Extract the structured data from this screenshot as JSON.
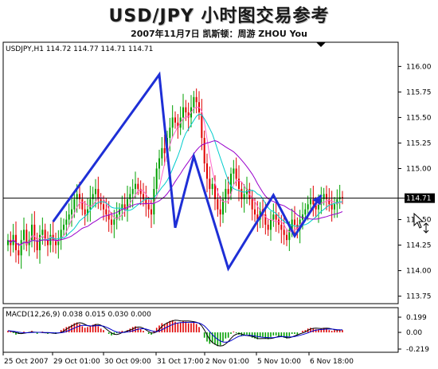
{
  "header": {
    "title": "USD/JPY 小时图交易参考",
    "subtitle": "2007年11月7日  凯斯顿：周游 ZHOU You"
  },
  "chart_data": [
    {
      "type": "candlestick",
      "symbol_header": "USDJPY,H1  114.72 114.77 114.71 114.71",
      "current_price_label": "114.71",
      "current_price": 114.71,
      "ylim": [
        113.7,
        116.12
      ],
      "y_ticks": [
        "116.00",
        "115.75",
        "115.50",
        "115.25",
        "115.00",
        "114.50",
        "114.25",
        "114.00",
        "113.75"
      ],
      "y_tick_values": [
        116.0,
        115.75,
        115.5,
        115.25,
        115.0,
        114.5,
        114.25,
        114.0,
        113.75
      ],
      "x_labels": [
        "25 Oct 2007",
        "29 Oct 01:00",
        "30 Oct 09:00",
        "31 Oct 17:00",
        "2 Nov 01:00",
        "5 Nov 10:00",
        "6 Nov 18:00"
      ],
      "close": [
        114.3,
        114.25,
        114.35,
        114.2,
        114.15,
        114.3,
        114.4,
        114.25,
        114.3,
        114.45,
        114.3,
        114.2,
        114.35,
        114.4,
        114.3,
        114.25,
        114.35,
        114.3,
        114.25,
        114.3,
        114.4,
        114.45,
        114.5,
        114.55,
        114.6,
        114.7,
        114.75,
        114.7,
        114.6,
        114.55,
        114.6,
        114.7,
        114.75,
        114.8,
        114.7,
        114.65,
        114.6,
        114.55,
        114.5,
        114.45,
        114.5,
        114.55,
        114.6,
        114.65,
        114.6,
        114.7,
        114.75,
        114.8,
        114.85,
        114.8,
        114.75,
        114.7,
        114.65,
        114.6,
        114.55,
        114.8,
        115.0,
        115.1,
        115.2,
        115.15,
        115.3,
        115.4,
        115.5,
        115.45,
        115.4,
        115.5,
        115.6,
        115.55,
        115.5,
        115.6,
        115.7,
        115.65,
        115.55,
        115.3,
        115.05,
        114.9,
        114.8,
        114.85,
        114.7,
        114.6,
        114.55,
        114.7,
        114.8,
        114.75,
        114.95,
        115.0,
        114.9,
        114.8,
        114.7,
        114.75,
        114.8,
        114.7,
        114.6,
        114.55,
        114.5,
        114.6,
        114.55,
        114.45,
        114.4,
        114.5,
        114.55,
        114.5,
        114.45,
        114.4,
        114.35,
        114.3,
        114.4,
        114.5,
        114.45,
        114.4,
        114.5,
        114.55,
        114.6,
        114.65,
        114.7,
        114.65,
        114.6,
        114.65,
        114.7,
        114.75,
        114.7,
        114.65,
        114.6,
        114.65,
        114.7,
        114.72,
        114.71
      ],
      "macd_label": "MACD(12,26,9) 0.038 0.015 0.030 0.000",
      "macd_ticks": [
        "0.199",
        "0.00",
        "-0.219"
      ],
      "macd_hist": [
        0.02,
        0.01,
        -0.01,
        -0.03,
        -0.02,
        0.0,
        0.01,
        -0.01,
        0.0,
        0.02,
        0.0,
        -0.02,
        0.0,
        0.01,
        -0.01,
        -0.02,
        0.0,
        -0.01,
        -0.02,
        0.0,
        0.03,
        0.05,
        0.07,
        0.08,
        0.1,
        0.12,
        0.13,
        0.11,
        0.08,
        0.06,
        0.07,
        0.09,
        0.1,
        0.11,
        0.08,
        0.05,
        0.03,
        0.0,
        -0.02,
        -0.04,
        -0.03,
        -0.01,
        0.01,
        0.02,
        0.01,
        0.03,
        0.05,
        0.07,
        0.08,
        0.06,
        0.04,
        0.02,
        0.0,
        -0.02,
        -0.03,
        0.02,
        0.06,
        0.09,
        0.12,
        0.11,
        0.13,
        0.15,
        0.16,
        0.14,
        0.12,
        0.13,
        0.15,
        0.14,
        0.12,
        0.12,
        0.13,
        0.11,
        0.07,
        0.0,
        -0.07,
        -0.12,
        -0.15,
        -0.14,
        -0.16,
        -0.18,
        -0.17,
        -0.12,
        -0.08,
        -0.07,
        -0.02,
        0.01,
        -0.01,
        -0.03,
        -0.05,
        -0.04,
        -0.03,
        -0.05,
        -0.07,
        -0.08,
        -0.09,
        -0.06,
        -0.06,
        -0.08,
        -0.09,
        -0.06,
        -0.04,
        -0.04,
        -0.05,
        -0.06,
        -0.07,
        -0.08,
        -0.05,
        -0.02,
        -0.02,
        -0.03,
        0.0,
        0.02,
        0.03,
        0.05,
        0.06,
        0.05,
        0.04,
        0.04,
        0.05,
        0.06,
        0.05,
        0.03,
        0.02,
        0.03,
        0.03,
        0.03,
        0.03
      ],
      "zigzag_projection": [
        {
          "i": 17,
          "price": 114.48
        },
        {
          "i": 57,
          "price": 115.92
        },
        {
          "i": 63,
          "price": 114.42
        },
        {
          "i": 70,
          "price": 115.12
        },
        {
          "i": 83,
          "price": 114.02
        },
        {
          "i": 100,
          "price": 114.74
        },
        {
          "i": 108,
          "price": 114.34
        },
        {
          "i": 118,
          "price": 114.74
        }
      ],
      "colors": {
        "bull": "#00a000",
        "bear": "#e00000",
        "zigzag": "#1e2fd6",
        "ma1": "#ff66cc",
        "ma2": "#00cccc",
        "ma3": "#9900cc"
      }
    }
  ]
}
